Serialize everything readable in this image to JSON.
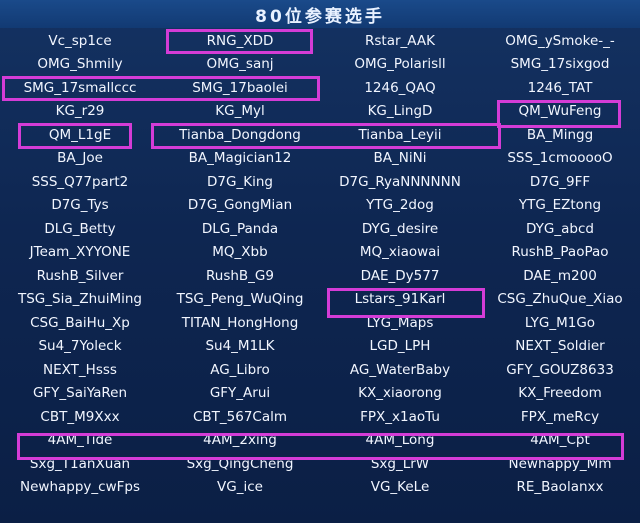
{
  "title": "80位参赛选手",
  "highlight_color": "#d43cd6",
  "rows": [
    [
      "Vc_sp1ce",
      "RNG_XDD",
      "Rstar_AAK",
      "OMG_ySmoke-_-"
    ],
    [
      "OMG_Shmily",
      "OMG_sanj",
      "OMG_Polarisll",
      "SMG_17sixgod"
    ],
    [
      "SMG_17smallccc",
      "SMG_17baolei",
      "1246_QAQ",
      "1246_TAT"
    ],
    [
      "KG_r29",
      "KG_Myl",
      "KG_LingD",
      "QM_WuFeng"
    ],
    [
      "QM_L1gE",
      "Tianba_Dongdong",
      "Tianba_Leyii",
      "BA_Mingg"
    ],
    [
      "BA_Joe",
      "BA_Magician12",
      "BA_NiNi",
      "SSS_1cmooooO"
    ],
    [
      "SSS_Q77part2",
      "D7G_King",
      "D7G_RyaNNNNNN",
      "D7G_9FF"
    ],
    [
      "D7G_Tys",
      "D7G_GongMian",
      "YTG_2dog",
      "YTG_EZtong"
    ],
    [
      "DLG_Betty",
      "DLG_Panda",
      "DYG_desire",
      "DYG_abcd"
    ],
    [
      "JTeam_XYYONE",
      "MQ_Xbb",
      "MQ_xiaowai",
      "RushB_PaoPao"
    ],
    [
      "RushB_Silver",
      "RushB_G9",
      "DAE_Dy577",
      "DAE_m200"
    ],
    [
      "TSG_Sia_ZhuiMing",
      "TSG_Peng_WuQing",
      "Lstars_91Karl",
      "CSG_ZhuQue_Xiao"
    ],
    [
      "CSG_BaiHu_Xp",
      "TITAN_HongHong",
      "LYG_Maps",
      "LYG_M1Go"
    ],
    [
      "Su4_7Yoleck",
      "Su4_M1LK",
      "LGD_LPH",
      "NEXT_Soldier"
    ],
    [
      "NEXT_Hsss",
      "AG_Libro",
      "AG_WaterBaby",
      "GFY_GOUZ8633"
    ],
    [
      "GFY_SaiYaRen",
      "GFY_Arui",
      "KX_xiaorong",
      "KX_Freedom"
    ],
    [
      "CBT_M9Xxx",
      "CBT_567Calm",
      "FPX_x1aoTu",
      "FPX_meRcy"
    ],
    [
      "4AM_Tide",
      "4AM_2xing",
      "4AM_Long",
      "4AM_Cpt"
    ],
    [
      "Sxg_T1anXuan",
      "Sxg_QingCheng",
      "Sxg_LrW",
      "Newhappy_Mm"
    ],
    [
      "Newhappy_cwFps",
      "VG_ice",
      "VG_KeLe",
      "RE_Baolanxx"
    ]
  ]
}
